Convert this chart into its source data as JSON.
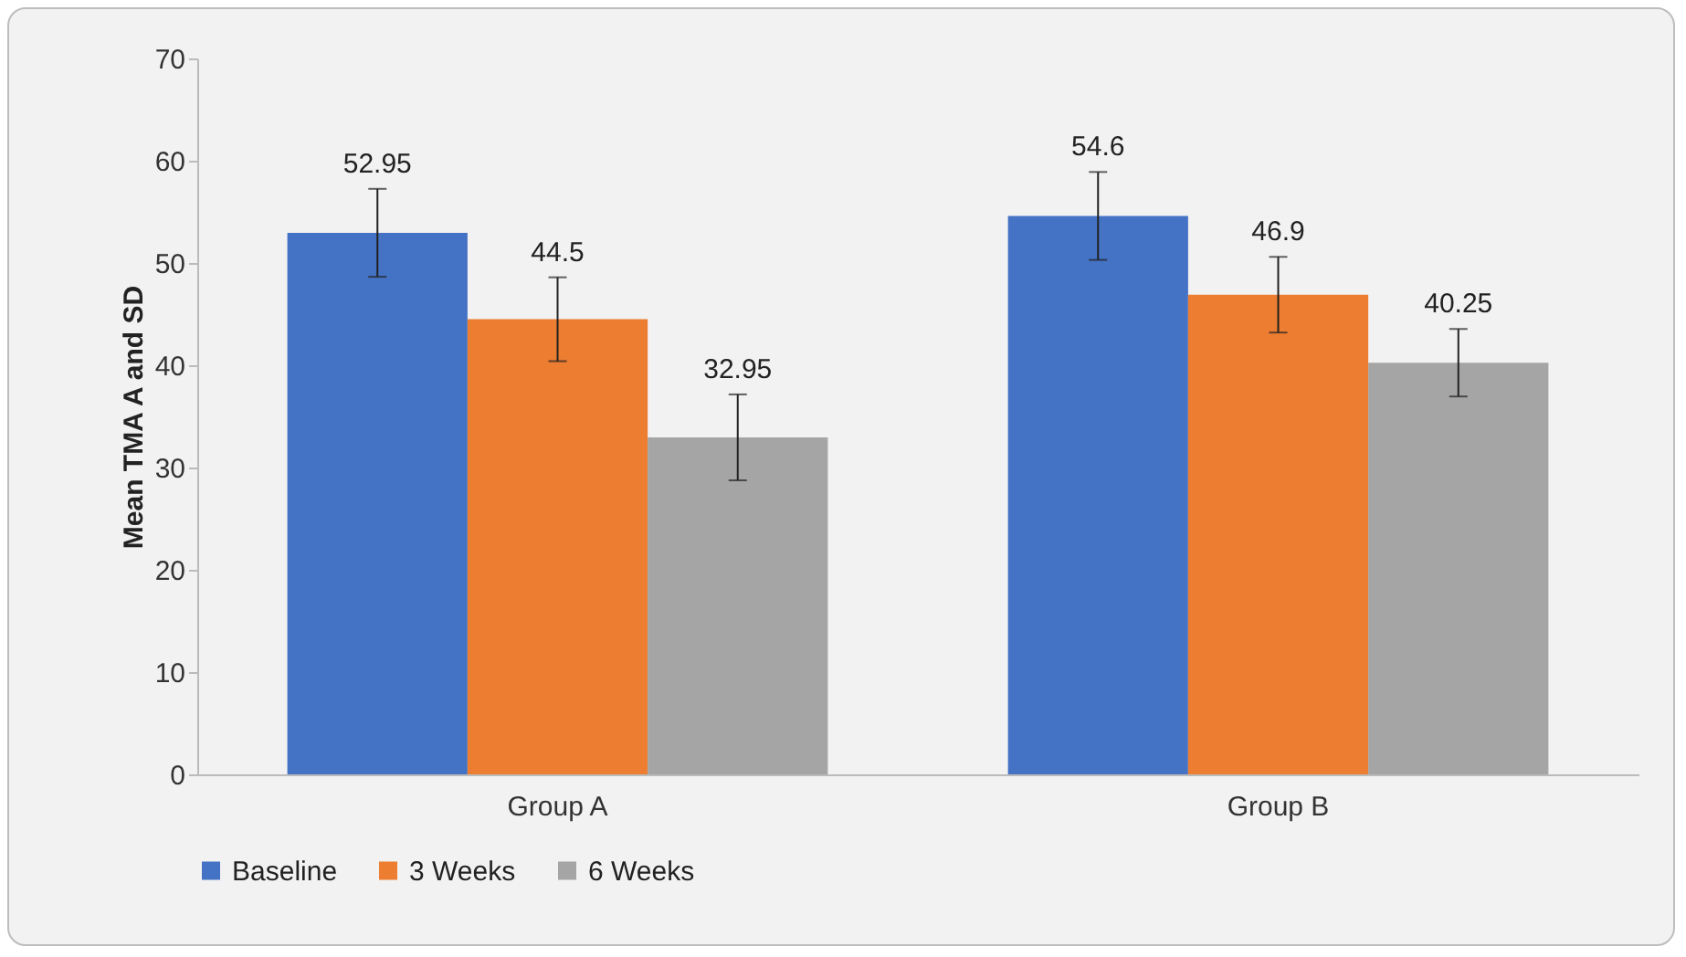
{
  "chart_data": {
    "type": "bar",
    "ylabel": "Mean TMA A and SD",
    "categories": [
      "Group A",
      "Group B"
    ],
    "series": [
      {
        "name": "Baseline",
        "color": "#4472c4",
        "values": [
          52.95,
          54.6
        ],
        "errors": [
          4.3,
          4.3
        ]
      },
      {
        "name": "3 Weeks",
        "color": "#ed7d31",
        "values": [
          44.5,
          46.9
        ],
        "errors": [
          4.1,
          3.7
        ]
      },
      {
        "name": "6 Weeks",
        "color": "#a5a5a5",
        "values": [
          32.95,
          40.25
        ],
        "errors": [
          4.2,
          3.3
        ]
      }
    ],
    "ylim": [
      0,
      70
    ],
    "yticks": [
      0,
      10,
      20,
      30,
      40,
      50,
      60,
      70
    ],
    "data_labels": true,
    "legend": "bottom",
    "grid": false
  }
}
